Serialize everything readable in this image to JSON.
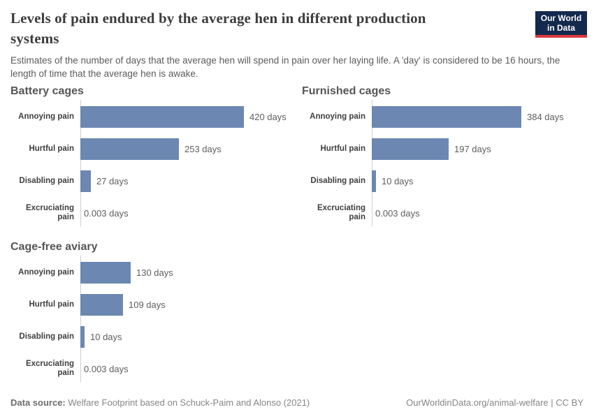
{
  "header": {
    "title": "Levels of pain endured by the average hen in different production systems",
    "title_lines": [
      "Levels of pain endured by the average hen in different production",
      "systems"
    ],
    "subtitle": "Estimates of the number of days that the average hen will spend in pain over her laying life. A 'day' is considered to be 16 hours, the length of time that the average hen is awake.",
    "logo": {
      "line1": "Our World",
      "line2": "in Data",
      "bg_color": "#13294d",
      "accent_color": "#d93a3e"
    }
  },
  "chart_data": [
    {
      "type": "bar",
      "orientation": "horizontal",
      "title": "Battery cages",
      "categories": [
        "Annoying pain",
        "Hurtful pain",
        "Disabling pain",
        "Excruciating pain"
      ],
      "values": [
        420,
        253,
        27,
        0.003
      ],
      "value_labels": [
        "420 days",
        "253 days",
        "27 days",
        "0.003 days"
      ],
      "unit": "days",
      "xlim": [
        0,
        420
      ],
      "bar_color": "#6c87b2",
      "grid": false,
      "legend": "none"
    },
    {
      "type": "bar",
      "orientation": "horizontal",
      "title": "Furnished cages",
      "categories": [
        "Annoying pain",
        "Hurtful pain",
        "Disabling pain",
        "Excruciating pain"
      ],
      "values": [
        384,
        197,
        10,
        0.003
      ],
      "value_labels": [
        "384 days",
        "197 days",
        "10 days",
        "0.003 days"
      ],
      "unit": "days",
      "xlim": [
        0,
        420
      ],
      "bar_color": "#6c87b2",
      "grid": false,
      "legend": "none"
    },
    {
      "type": "bar",
      "orientation": "horizontal",
      "title": "Cage-free aviary",
      "categories": [
        "Annoying pain",
        "Hurtful pain",
        "Disabling pain",
        "Excruciating pain"
      ],
      "values": [
        130,
        109,
        10,
        0.003
      ],
      "value_labels": [
        "130 days",
        "109 days",
        "10 days",
        "0.003 days"
      ],
      "unit": "days",
      "xlim": [
        0,
        420
      ],
      "bar_color": "#6c87b2",
      "grid": false,
      "legend": "none"
    }
  ],
  "footer": {
    "source_label": "Data source:",
    "source_text": " Welfare Footprint based on Schuck-Paim and Alonso (2021)",
    "link_text": "OurWorldinData.org/animal-welfare | CC BY"
  }
}
